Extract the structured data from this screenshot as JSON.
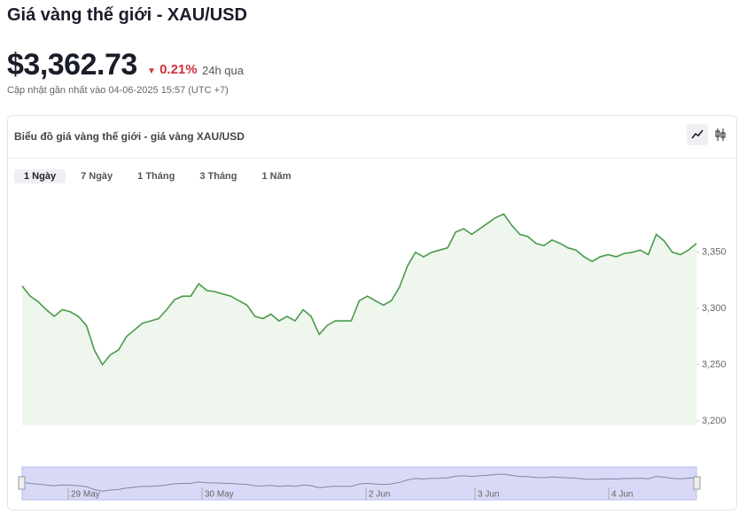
{
  "header": {
    "title": "Giá vàng thế giới - XAU/USD",
    "price": "$3,362.73",
    "change": "0.21%",
    "period": "24h qua",
    "updated": "Cập nhật gần nhất vào 04-06-2025 15:57 (UTC +7)"
  },
  "card": {
    "title": "Biểu đồ giá vàng thế giới - giá vàng XAU/USD",
    "tabs": [
      "1 Ngày",
      "7 Ngày",
      "1 Tháng",
      "3 Tháng",
      "1 Năm"
    ]
  },
  "chart_data": {
    "type": "area",
    "color": "#4a9a4a",
    "values": [
      3320,
      3311,
      3306,
      3299,
      3293,
      3299,
      3297,
      3293,
      3285,
      3263,
      3250,
      3259,
      3263,
      3275,
      3281,
      3287,
      3289,
      3291,
      3299,
      3308,
      3311,
      3311,
      3322,
      3316,
      3315,
      3313,
      3311,
      3307,
      3303,
      3293,
      3291,
      3295,
      3289,
      3293,
      3289,
      3299,
      3293,
      3277,
      3285,
      3289,
      3289,
      3289,
      3307,
      3311,
      3307,
      3303,
      3307,
      3319,
      3338,
      3350,
      3346,
      3350,
      3352,
      3354,
      3368,
      3371,
      3366,
      3371,
      3376,
      3381,
      3384,
      3374,
      3366,
      3364,
      3358,
      3356,
      3361,
      3358,
      3354,
      3352,
      3346,
      3342,
      3346,
      3348,
      3346,
      3349,
      3350,
      3352,
      3348,
      3366,
      3360,
      3350,
      3348,
      3352,
      3358
    ],
    "ylim": [
      3196,
      3405
    ],
    "yticks": [
      {
        "value": 3200,
        "label": "3,200"
      },
      {
        "value": 3250,
        "label": "3,250"
      },
      {
        "value": 3300,
        "label": "3,300"
      },
      {
        "value": 3350,
        "label": "3,350"
      }
    ],
    "navigator_labels": [
      "29 May",
      "30 May",
      "2 Jun",
      "3 Jun",
      "4 Jun"
    ]
  }
}
